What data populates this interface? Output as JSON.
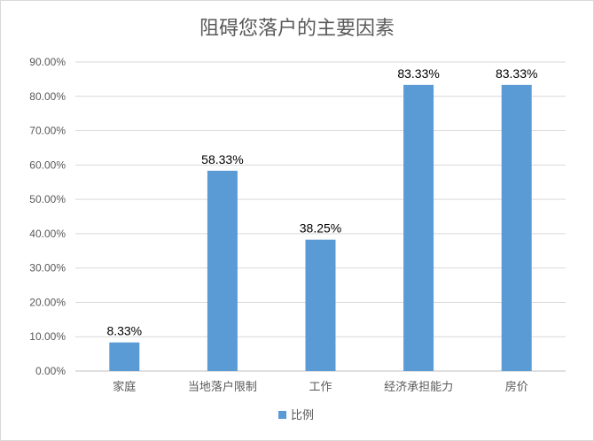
{
  "chart_data": {
    "type": "bar",
    "title": "阻碍您落户的主要因素",
    "categories": [
      "家庭",
      "当地落户限制",
      "工作",
      "经济承担能力",
      "房价"
    ],
    "series": [
      {
        "name": "比例",
        "values": [
          8.33,
          58.33,
          38.25,
          83.33,
          83.33
        ],
        "data_labels": [
          "8.33%",
          "58.33%",
          "38.25%",
          "83.33%",
          "83.33%"
        ],
        "color": "#5B9BD5"
      }
    ],
    "y_ticks": [
      "0.00%",
      "10.00%",
      "20.00%",
      "30.00%",
      "40.00%",
      "50.00%",
      "60.00%",
      "70.00%",
      "80.00%",
      "90.00%"
    ],
    "ylim": [
      0,
      90
    ],
    "grid": true,
    "legend_position": "bottom"
  }
}
